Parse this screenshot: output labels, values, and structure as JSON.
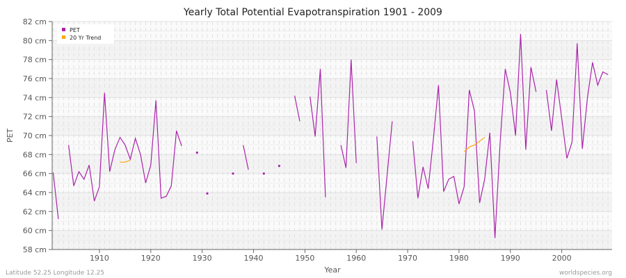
{
  "chart_data": {
    "type": "line",
    "title": "Yearly Total Potential Evapotranspiration 1901 - 2009",
    "xlabel": "Year",
    "ylabel": "PET",
    "xlim": [
      1901,
      2009
    ],
    "ylim": [
      58,
      82
    ],
    "y_unit": "cm",
    "yticks": [
      "58 cm",
      "60 cm",
      "62 cm",
      "64 cm",
      "66 cm",
      "68 cm",
      "70 cm",
      "72 cm",
      "74 cm",
      "76 cm",
      "78 cm",
      "80 cm",
      "82 cm"
    ],
    "xticks": [
      "1910",
      "1920",
      "1930",
      "1940",
      "1950",
      "1960",
      "1970",
      "1980",
      "1990",
      "2000"
    ],
    "grid": true,
    "legend_position": "top-left",
    "series": [
      {
        "name": "PET",
        "color": "#aa22aa",
        "x": [
          1901,
          1902,
          1903,
          1904,
          1905,
          1906,
          1907,
          1908,
          1909,
          1910,
          1911,
          1912,
          1913,
          1914,
          1915,
          1916,
          1917,
          1918,
          1919,
          1920,
          1921,
          1922,
          1923,
          1924,
          1925,
          1926,
          1927,
          1928,
          1929,
          1930,
          1931,
          1932,
          1933,
          1934,
          1935,
          1936,
          1937,
          1938,
          1939,
          1940,
          1941,
          1942,
          1943,
          1944,
          1945,
          1946,
          1947,
          1948,
          1949,
          1950,
          1951,
          1952,
          1953,
          1954,
          1955,
          1956,
          1957,
          1958,
          1959,
          1960,
          1961,
          1962,
          1963,
          1964,
          1965,
          1966,
          1967,
          1968,
          1969,
          1970,
          1971,
          1972,
          1973,
          1974,
          1975,
          1976,
          1977,
          1978,
          1979,
          1980,
          1981,
          1982,
          1983,
          1984,
          1985,
          1986,
          1987,
          1988,
          1989,
          1990,
          1991,
          1992,
          1993,
          1994,
          1995,
          1996,
          1997,
          1998,
          1999,
          2000,
          2001,
          2002,
          2003,
          2004,
          2005,
          2006,
          2007,
          2008,
          2009
        ],
        "values": [
          66.1,
          61.2,
          null,
          69.0,
          64.7,
          66.2,
          65.4,
          66.9,
          63.1,
          64.6,
          74.5,
          66.2,
          68.5,
          69.8,
          69.0,
          67.5,
          69.7,
          68.0,
          65.0,
          66.9,
          73.7,
          63.4,
          63.6,
          64.7,
          70.5,
          68.9,
          null,
          null,
          68.2,
          null,
          63.9,
          null,
          null,
          null,
          null,
          66.0,
          null,
          69.0,
          66.4,
          null,
          null,
          66.0,
          null,
          null,
          66.8,
          null,
          null,
          74.2,
          71.5,
          null,
          74.1,
          69.9,
          77.0,
          63.5,
          null,
          null,
          69.0,
          66.6,
          78.0,
          67.1,
          null,
          null,
          null,
          69.9,
          60.1,
          65.8,
          71.5,
          null,
          null,
          null,
          69.4,
          63.4,
          66.7,
          64.4,
          69.6,
          75.3,
          64.1,
          65.4,
          65.7,
          62.8,
          64.6,
          74.8,
          72.6,
          62.9,
          65.4,
          70.3,
          59.2,
          69.2,
          77.0,
          74.5,
          70.0,
          80.7,
          68.5,
          77.2,
          74.6,
          null,
          74.8,
          70.5,
          75.9,
          71.8,
          67.6,
          69.3,
          79.7,
          68.6,
          74.0,
          77.7,
          75.3,
          76.7,
          76.4
        ]
      },
      {
        "name": "20 Yr Trend",
        "color": "#ffa500",
        "x": [
          1914,
          1915,
          1916,
          1981,
          1982,
          1983,
          1984,
          1985
        ],
        "values": [
          67.2,
          67.2,
          67.4,
          68.3,
          68.8,
          69.0,
          69.4,
          69.8
        ]
      }
    ]
  },
  "footer": {
    "location": "Latitude 52.25 Longitude 12.25",
    "source": "worldspecies.org"
  }
}
